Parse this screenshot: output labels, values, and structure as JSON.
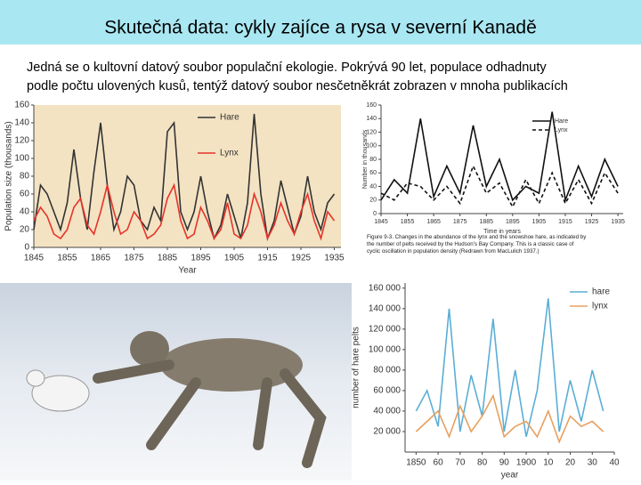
{
  "header": {
    "title": "Skutečná data: cykly zajíce a rysa v severní Kanadě"
  },
  "text": {
    "lines": [
      "Jedná se o kultovní datový soubor populační ekologie. Pokrývá 90 let, populace odhadnuty",
      "podle počtu ulovených kusů, tentýž datový soubor nesčetněkrát zobrazen v mnoha publikacích"
    ]
  },
  "charts": [
    {
      "type": "line",
      "ylabel": "Population size (thousands)",
      "xlabel": "Year",
      "background": "#f3e3c3",
      "xlim": [
        1845,
        1937
      ],
      "ylim": [
        0,
        160
      ],
      "xticks": [
        1845,
        1855,
        1865,
        1875,
        1885,
        1895,
        1905,
        1915,
        1925,
        1935
      ],
      "yticks": [
        0,
        20,
        40,
        60,
        80,
        100,
        120,
        140,
        160
      ],
      "x": [
        1845,
        1847,
        1849,
        1851,
        1853,
        1855,
        1857,
        1859,
        1861,
        1863,
        1865,
        1867,
        1869,
        1871,
        1873,
        1875,
        1877,
        1879,
        1881,
        1883,
        1885,
        1887,
        1889,
        1891,
        1893,
        1895,
        1897,
        1899,
        1901,
        1903,
        1905,
        1907,
        1909,
        1911,
        1913,
        1915,
        1917,
        1919,
        1921,
        1923,
        1925,
        1927,
        1929,
        1931,
        1933,
        1935
      ],
      "series": [
        {
          "name": "Hare",
          "color": "#333333",
          "values": [
            20,
            70,
            60,
            40,
            20,
            50,
            110,
            55,
            20,
            85,
            140,
            70,
            20,
            40,
            80,
            70,
            30,
            20,
            45,
            30,
            130,
            140,
            40,
            20,
            40,
            80,
            40,
            10,
            25,
            60,
            35,
            10,
            50,
            150,
            60,
            10,
            30,
            75,
            45,
            15,
            35,
            80,
            40,
            20,
            50,
            60
          ]
        },
        {
          "name": "Lynx",
          "color": "#e8332a",
          "values": [
            30,
            45,
            35,
            15,
            10,
            20,
            45,
            55,
            25,
            15,
            40,
            70,
            40,
            15,
            20,
            40,
            30,
            10,
            15,
            25,
            55,
            70,
            30,
            10,
            15,
            45,
            30,
            10,
            20,
            50,
            15,
            10,
            25,
            60,
            40,
            10,
            25,
            50,
            30,
            15,
            40,
            60,
            30,
            10,
            40,
            30
          ]
        }
      ]
    },
    {
      "type": "line",
      "ylabel": "Number in thousands",
      "xlabel": "Time in years",
      "caption": "Figure 9-3. Changes in the abundance of the lynx and the snowshoe hare, as indicated by the number of pelts received by the Hudson's Bay Company. This is a classic case of cyclic oscillation in population density (Redrawn from MacLulich 1937.)",
      "xlim": [
        1845,
        1937
      ],
      "ylim": [
        0,
        160
      ],
      "xticks": [
        1845,
        1855,
        1865,
        1875,
        1885,
        1895,
        1905,
        1915,
        1925,
        1935
      ],
      "yticks": [
        0,
        20,
        40,
        60,
        80,
        100,
        120,
        140,
        160
      ],
      "x": [
        1845,
        1850,
        1855,
        1860,
        1865,
        1870,
        1875,
        1880,
        1885,
        1890,
        1895,
        1900,
        1905,
        1910,
        1915,
        1920,
        1925,
        1930,
        1935
      ],
      "series": [
        {
          "name": "Hare",
          "color": "#111111",
          "dash": false,
          "values": [
            20,
            50,
            30,
            140,
            25,
            70,
            30,
            130,
            40,
            80,
            20,
            40,
            30,
            150,
            20,
            70,
            25,
            80,
            40
          ]
        },
        {
          "name": "Lynx",
          "color": "#111111",
          "dash": true,
          "values": [
            30,
            20,
            45,
            40,
            20,
            40,
            15,
            70,
            30,
            45,
            10,
            50,
            15,
            60,
            15,
            50,
            15,
            60,
            30
          ]
        }
      ]
    },
    {
      "type": "line",
      "ylabel": "number of hare pelts",
      "xlabel": "year",
      "xlim": [
        1845,
        1940
      ],
      "ylim": [
        0,
        165000
      ],
      "xticks": [
        1850,
        {
          "value": 1860,
          "label": "60"
        },
        {
          "value": 1870,
          "label": "70"
        },
        {
          "value": 1880,
          "label": "80"
        },
        {
          "value": 1890,
          "label": "90"
        },
        1900,
        {
          "value": 1910,
          "label": "10"
        },
        {
          "value": 1920,
          "label": "20"
        },
        {
          "value": 1930,
          "label": "30"
        },
        {
          "value": 1940,
          "label": "40"
        }
      ],
      "yticks": [
        {
          "value": 20000,
          "label": "20 000"
        },
        {
          "value": 40000,
          "label": "40 000"
        },
        {
          "value": 60000,
          "label": "60 000"
        },
        {
          "value": 80000,
          "label": "80 000"
        },
        {
          "value": 100000,
          "label": "100 000"
        },
        {
          "value": 120000,
          "label": "120 000"
        },
        {
          "value": 140000,
          "label": "140 000"
        },
        {
          "value": 160000,
          "label": "160 000"
        }
      ],
      "x": [
        1850,
        1855,
        1860,
        1865,
        1870,
        1875,
        1880,
        1885,
        1890,
        1895,
        1900,
        1905,
        1910,
        1915,
        1920,
        1925,
        1930,
        1935
      ],
      "series": [
        {
          "name": "hare",
          "color": "#5aaed6",
          "values": [
            40000,
            60000,
            25000,
            140000,
            20000,
            75000,
            35000,
            130000,
            20000,
            80000,
            15000,
            60000,
            150000,
            20000,
            70000,
            30000,
            80000,
            40000
          ]
        },
        {
          "name": "lynx",
          "color": "#e8a060",
          "values": [
            20000,
            30000,
            40000,
            15000,
            45000,
            20000,
            35000,
            55000,
            15000,
            25000,
            30000,
            15000,
            40000,
            10000,
            35000,
            25000,
            30000,
            20000
          ]
        }
      ]
    }
  ]
}
